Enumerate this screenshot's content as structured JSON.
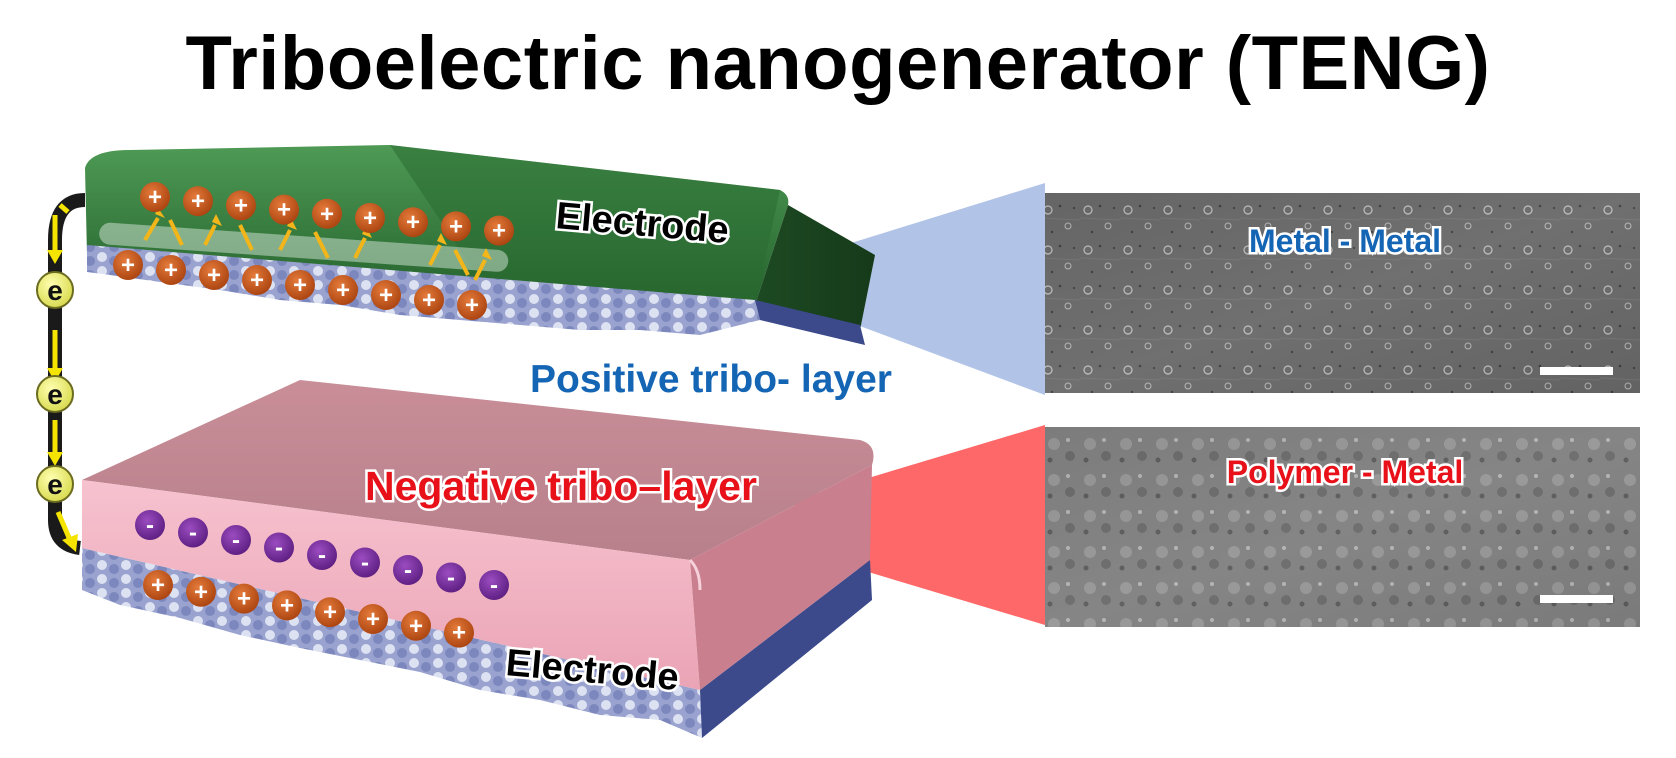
{
  "title": "Triboelectric nanogenerator (TENG)",
  "labels": {
    "top_electrode": "Electrode",
    "bottom_electrode": "Electrode",
    "positive_layer": "Positive tribo- layer",
    "negative_layer": "Negative tribo–layer",
    "sem_top": "Metal - Metal",
    "sem_bottom": "Polymer - Metal"
  },
  "symbols": {
    "positive": "+",
    "negative": "-",
    "electron": "e"
  },
  "colors": {
    "green_electrode": "#2e7d3a",
    "pink_layer": "#e8a3b4",
    "positive_charge": "#c2551a",
    "negative_charge": "#7a2b9e",
    "electron_arrow": "#f4e400",
    "blue_text": "#1565b5",
    "red_text": "#e8111a",
    "blue_beam": "#9fb2de",
    "red_beam": "#ff5a5a"
  }
}
